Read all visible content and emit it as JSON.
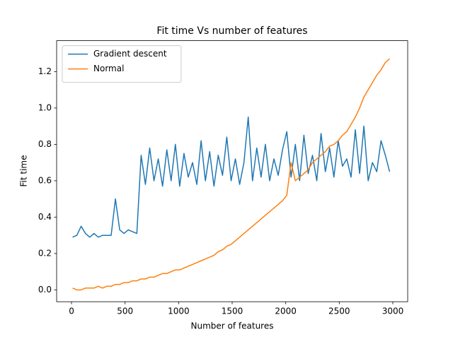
{
  "chart_data": {
    "type": "line",
    "title": "Fit time Vs number of features",
    "x_label": "Number of features",
    "y_label": "Fit time",
    "x": [
      10,
      50,
      90,
      130,
      170,
      210,
      250,
      290,
      330,
      370,
      410,
      450,
      490,
      530,
      570,
      610,
      650,
      690,
      730,
      770,
      810,
      850,
      890,
      930,
      970,
      1010,
      1050,
      1090,
      1130,
      1170,
      1210,
      1250,
      1290,
      1330,
      1370,
      1410,
      1450,
      1490,
      1530,
      1570,
      1610,
      1650,
      1690,
      1730,
      1770,
      1810,
      1850,
      1890,
      1930,
      1970,
      2010,
      2050,
      2090,
      2130,
      2170,
      2210,
      2250,
      2290,
      2330,
      2370,
      2410,
      2450,
      2490,
      2530,
      2570,
      2610,
      2650,
      2690,
      2730,
      2770,
      2810,
      2850,
      2890,
      2930,
      2970
    ],
    "series": [
      {
        "name": "Gradient descent",
        "color": "#1f77b4",
        "values": [
          0.29,
          0.3,
          0.35,
          0.31,
          0.29,
          0.31,
          0.29,
          0.3,
          0.3,
          0.3,
          0.5,
          0.33,
          0.31,
          0.33,
          0.32,
          0.31,
          0.74,
          0.58,
          0.78,
          0.6,
          0.72,
          0.57,
          0.77,
          0.6,
          0.8,
          0.57,
          0.75,
          0.62,
          0.7,
          0.58,
          0.82,
          0.6,
          0.76,
          0.57,
          0.74,
          0.63,
          0.84,
          0.6,
          0.72,
          0.58,
          0.7,
          0.95,
          0.6,
          0.78,
          0.62,
          0.8,
          0.6,
          0.72,
          0.63,
          0.77,
          0.87,
          0.62,
          0.8,
          0.6,
          0.85,
          0.64,
          0.74,
          0.6,
          0.86,
          0.65,
          0.78,
          0.62,
          0.82,
          0.68,
          0.72,
          0.62,
          0.88,
          0.64,
          0.9,
          0.6,
          0.7,
          0.65,
          0.82,
          0.74,
          0.65
        ]
      },
      {
        "name": "Normal",
        "color": "#ff7f0e",
        "values": [
          0.01,
          0.0,
          0.0,
          0.01,
          0.01,
          0.01,
          0.02,
          0.01,
          0.02,
          0.02,
          0.03,
          0.03,
          0.04,
          0.04,
          0.05,
          0.05,
          0.06,
          0.06,
          0.07,
          0.07,
          0.08,
          0.09,
          0.09,
          0.1,
          0.11,
          0.11,
          0.12,
          0.13,
          0.14,
          0.15,
          0.16,
          0.17,
          0.18,
          0.19,
          0.21,
          0.22,
          0.24,
          0.25,
          0.27,
          0.29,
          0.31,
          0.33,
          0.35,
          0.37,
          0.39,
          0.41,
          0.43,
          0.45,
          0.47,
          0.49,
          0.52,
          0.7,
          0.6,
          0.62,
          0.64,
          0.66,
          0.7,
          0.72,
          0.74,
          0.76,
          0.79,
          0.8,
          0.82,
          0.85,
          0.87,
          0.91,
          0.95,
          1.0,
          1.06,
          1.1,
          1.14,
          1.18,
          1.21,
          1.25,
          1.27
        ]
      }
    ],
    "xlim": [
      -139,
      3139
    ],
    "ylim": [
      -0.065,
      1.37
    ],
    "xticks": [
      0,
      500,
      1000,
      1500,
      2000,
      2500,
      3000
    ],
    "yticks": [
      {
        "value": 0,
        "label": "0.0"
      },
      {
        "value": 0.2,
        "label": "0.2"
      },
      {
        "value": 0.4,
        "label": "0.4"
      },
      {
        "value": 0.6,
        "label": "0.6"
      },
      {
        "value": 0.8,
        "label": "0.8"
      },
      {
        "value": 1,
        "label": "1.0"
      },
      {
        "value": 1.2,
        "label": "1.2"
      }
    ],
    "legend": "upper left"
  }
}
